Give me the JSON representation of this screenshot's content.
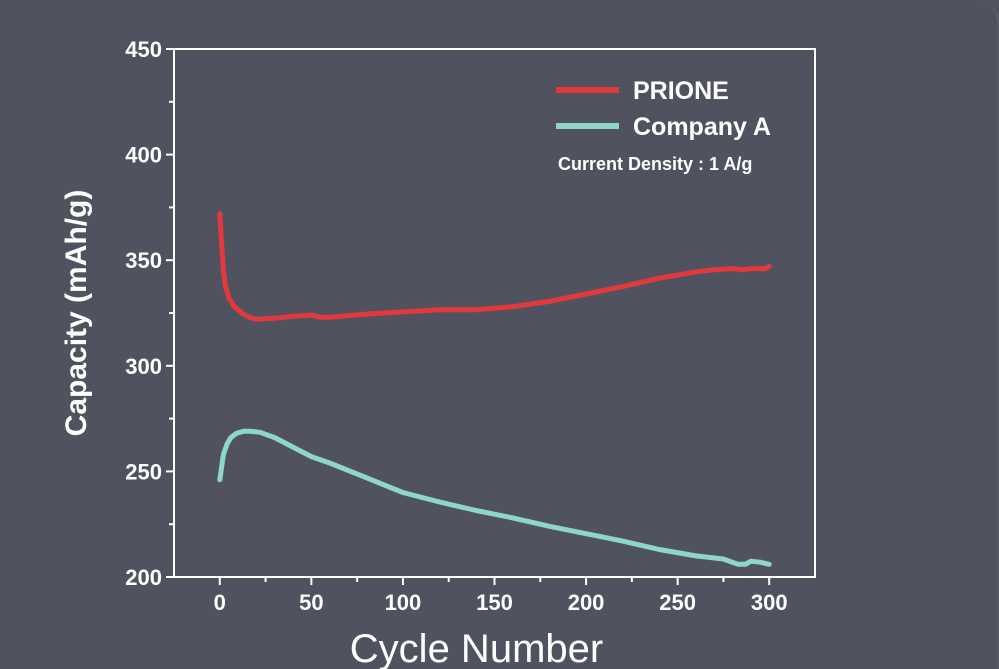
{
  "chart_data": {
    "type": "line",
    "title": "",
    "xlabel": "Cycle Number",
    "ylabel": "Capacity (mAh/g)",
    "xlim": [
      -25,
      325
    ],
    "ylim": [
      200,
      450
    ],
    "xticks": [
      0,
      50,
      100,
      150,
      200,
      250,
      300
    ],
    "yticks": [
      200,
      250,
      300,
      350,
      400,
      450
    ],
    "grid": false,
    "legend_position": "top-right",
    "annotation": "Current Density : 1 A/g",
    "series": [
      {
        "name": "PRIONE",
        "color": "#e03a3e",
        "x": [
          0,
          1,
          2,
          3,
          5,
          8,
          12,
          16,
          20,
          30,
          40,
          50,
          55,
          60,
          80,
          100,
          120,
          140,
          160,
          180,
          200,
          220,
          240,
          260,
          270,
          280,
          285,
          290,
          295,
          298,
          300
        ],
        "y": [
          372,
          358,
          345,
          338,
          332,
          328,
          325,
          323,
          322,
          322.5,
          323.5,
          324,
          323,
          323,
          324.5,
          325.5,
          326.5,
          326.5,
          328,
          330.5,
          334,
          337.5,
          341.5,
          344.5,
          345.5,
          346,
          345.5,
          346,
          346,
          346,
          347
        ]
      },
      {
        "name": "Company A",
        "color": "#8ed6cc",
        "x": [
          0,
          1,
          2,
          4,
          6,
          9,
          13,
          17,
          22,
          30,
          40,
          50,
          60,
          80,
          100,
          120,
          140,
          160,
          180,
          200,
          220,
          240,
          260,
          275,
          283,
          287,
          290,
          295,
          300
        ],
        "y": [
          246,
          252,
          258,
          263,
          266,
          268,
          269,
          269,
          268.5,
          266,
          261.5,
          257,
          254,
          247,
          240,
          235.5,
          231.5,
          228,
          224,
          220.5,
          217,
          213,
          210,
          208.5,
          206,
          206,
          207.5,
          207,
          206
        ]
      }
    ]
  }
}
